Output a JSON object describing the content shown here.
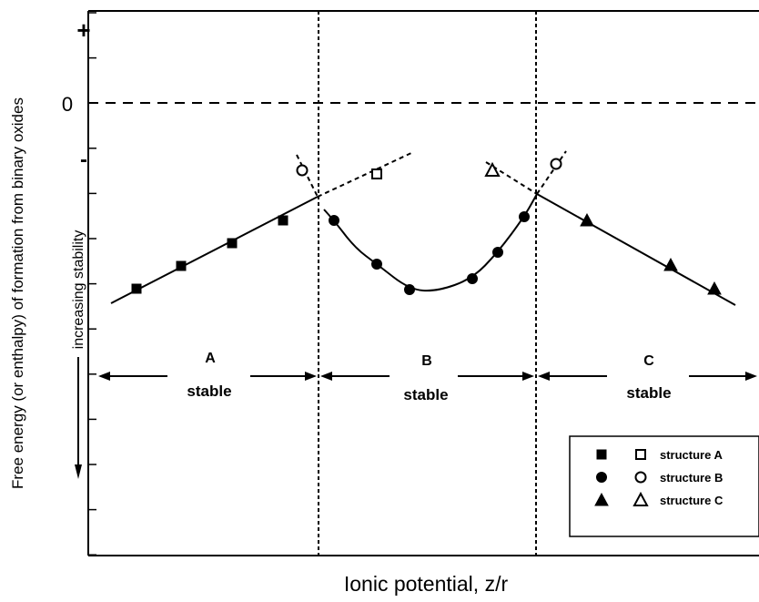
{
  "chart_data": {
    "type": "scatter",
    "xlabel": "Ionic potential, z/r",
    "ylabel": "Free energy (or enthalpy) of formation from binary oxides",
    "y_tick_labels": {
      "plus": "+",
      "zero": "0",
      "minus": "-"
    },
    "stability_label": "increasing stability",
    "regions": [
      {
        "name": "A",
        "status": "stable"
      },
      {
        "name": "B",
        "status": "stable"
      },
      {
        "name": "C",
        "status": "stable"
      }
    ],
    "legend": {
      "placement": "bottom-right",
      "entries": [
        {
          "label": "structure A",
          "marker": "square"
        },
        {
          "label": "structure B",
          "marker": "circle"
        },
        {
          "label": "structure C",
          "marker": "triangle"
        }
      ]
    },
    "series": [
      {
        "structure": "A",
        "state": "stable",
        "points": [
          [
            150,
            317
          ],
          [
            199,
            292
          ],
          [
            255,
            267
          ],
          [
            311,
            242
          ]
        ],
        "fit": [
          [
            122,
            333
          ],
          [
            349,
            216
          ]
        ]
      },
      {
        "structure": "A",
        "state": "metastable",
        "points": [
          [
            414,
            191
          ]
        ],
        "fit": [
          [
            349,
            216
          ],
          [
            452,
            168
          ]
        ]
      },
      {
        "structure": "B",
        "state": "stable",
        "points": [
          [
            367,
            242
          ],
          [
            414,
            290
          ],
          [
            450,
            318
          ],
          [
            519,
            306
          ],
          [
            547,
            277
          ],
          [
            576,
            238
          ]
        ],
        "curve": [
          [
            356,
            230
          ],
          [
            367,
            242
          ],
          [
            390,
            272
          ],
          [
            414,
            290
          ],
          [
            450,
            318
          ],
          [
            480,
            320
          ],
          [
            519,
            306
          ],
          [
            547,
            277
          ],
          [
            576,
            238
          ],
          [
            590,
            213
          ]
        ]
      },
      {
        "structure": "B",
        "state": "metastable",
        "points": [
          [
            332,
            187
          ],
          [
            611,
            180
          ]
        ],
        "fit_left": [
          [
            326,
            170
          ],
          [
            349,
            216
          ]
        ],
        "fit_right": [
          [
            590,
            213
          ],
          [
            622,
            166
          ]
        ]
      },
      {
        "structure": "C",
        "state": "stable",
        "points": [
          [
            645,
            242
          ],
          [
            737,
            291
          ],
          [
            785,
            317
          ]
        ],
        "fit": [
          [
            590,
            213
          ],
          [
            808,
            335
          ]
        ]
      },
      {
        "structure": "C",
        "state": "metastable",
        "points": [
          [
            541,
            187
          ]
        ],
        "fit": [
          [
            534,
            178
          ],
          [
            590,
            213
          ]
        ]
      }
    ]
  }
}
